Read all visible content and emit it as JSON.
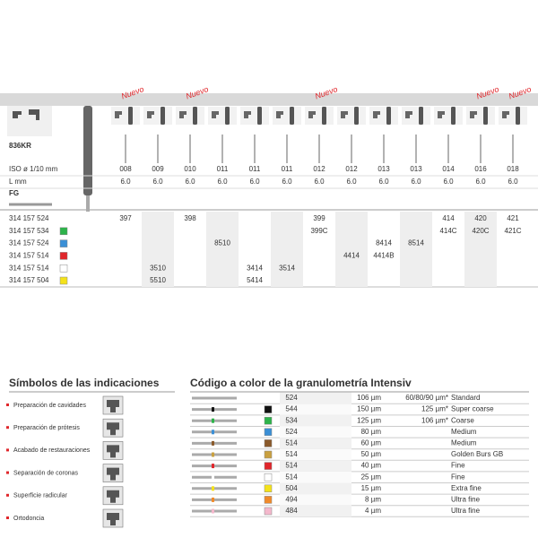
{
  "product": "836KR",
  "new_label": "Nuevo",
  "new_columns": [
    0,
    2,
    6,
    11,
    12
  ],
  "specs": [
    {
      "label": "ISO ø 1/10 mm",
      "values": [
        "008",
        "009",
        "010",
        "011",
        "011",
        "011",
        "012",
        "012",
        "013",
        "013",
        "014",
        "016",
        "018"
      ]
    },
    {
      "label": "L mm",
      "values": [
        "6.0",
        "6.0",
        "6.0",
        "6.0",
        "6.0",
        "6.0",
        "6.0",
        "6.0",
        "6.0",
        "6.0",
        "6.0",
        "6.0",
        "6.0"
      ]
    }
  ],
  "shank": "FG",
  "rows": [
    {
      "code": "314 157 524",
      "values": [
        "397",
        null,
        "398",
        null,
        null,
        null,
        "399",
        null,
        null,
        null,
        "414",
        "420",
        "421"
      ]
    },
    {
      "code": "314 157 534",
      "color": "#2db34a",
      "values": [
        null,
        null,
        null,
        null,
        null,
        null,
        "399C",
        null,
        null,
        null,
        "414C",
        "420C",
        "421C"
      ]
    },
    {
      "code": "314 157 524",
      "color": "#3a8fd6",
      "values": [
        null,
        null,
        null,
        "8510",
        null,
        null,
        null,
        null,
        "8414",
        "8514",
        null,
        null,
        null
      ]
    },
    {
      "code": "314 157 514",
      "color": "#e0262b",
      "values": [
        null,
        null,
        null,
        null,
        null,
        null,
        null,
        "4414",
        "4414B",
        null,
        null,
        null,
        null
      ]
    },
    {
      "code": "314 157 514",
      "color": "#ffffff",
      "values": [
        null,
        "3510",
        null,
        null,
        "3414",
        "3514",
        null,
        null,
        null,
        null,
        null,
        null,
        null
      ]
    },
    {
      "code": "314 157 504",
      "color": "#f4e21a",
      "values": [
        null,
        "5510",
        null,
        null,
        "5414",
        null,
        null,
        null,
        null,
        null,
        null,
        null,
        null
      ]
    }
  ],
  "indications": {
    "title": "Símbolos de las indicaciones",
    "items": [
      "Preparación de cavidades",
      "Preparación de prótesis",
      "Acabado de restauraciones",
      "Separación de coronas",
      "Superficie radicular",
      "Ortodoncia"
    ]
  },
  "grit": {
    "title": "Código a color de la granulometría Intensiv",
    "rows": [
      {
        "code": "524",
        "size": "106 µm",
        "note": "60/80/90 µm*",
        "name": "Standard"
      },
      {
        "code": "544",
        "size": "150 µm",
        "note": "125 µm*",
        "name": "Super coarse",
        "color": "#111111"
      },
      {
        "code": "534",
        "size": "125 µm",
        "note": "106 µm*",
        "name": "Coarse",
        "color": "#2db34a"
      },
      {
        "code": "524",
        "size": "80 µm",
        "name": "Medium",
        "color": "#3a8fd6"
      },
      {
        "code": "514",
        "size": "60 µm",
        "name": "Medium",
        "color": "#8a5a2b"
      },
      {
        "code": "514",
        "size": "50 µm",
        "name": "Golden Burs GB",
        "color": "#c9a040"
      },
      {
        "code": "514",
        "size": "40 µm",
        "name": "Fine",
        "color": "#e0262b"
      },
      {
        "code": "514",
        "size": "25 µm",
        "name": "Fine",
        "color": "#ffffff"
      },
      {
        "code": "504",
        "size": "15 µm",
        "name": "Extra fine",
        "color": "#f4e21a"
      },
      {
        "code": "494",
        "size": "8 µm",
        "name": "Ultra fine",
        "color": "#f08a2a"
      },
      {
        "code": "484",
        "size": "4 µm",
        "name": "Ultra fine",
        "color": "#f4b8cc"
      }
    ]
  }
}
